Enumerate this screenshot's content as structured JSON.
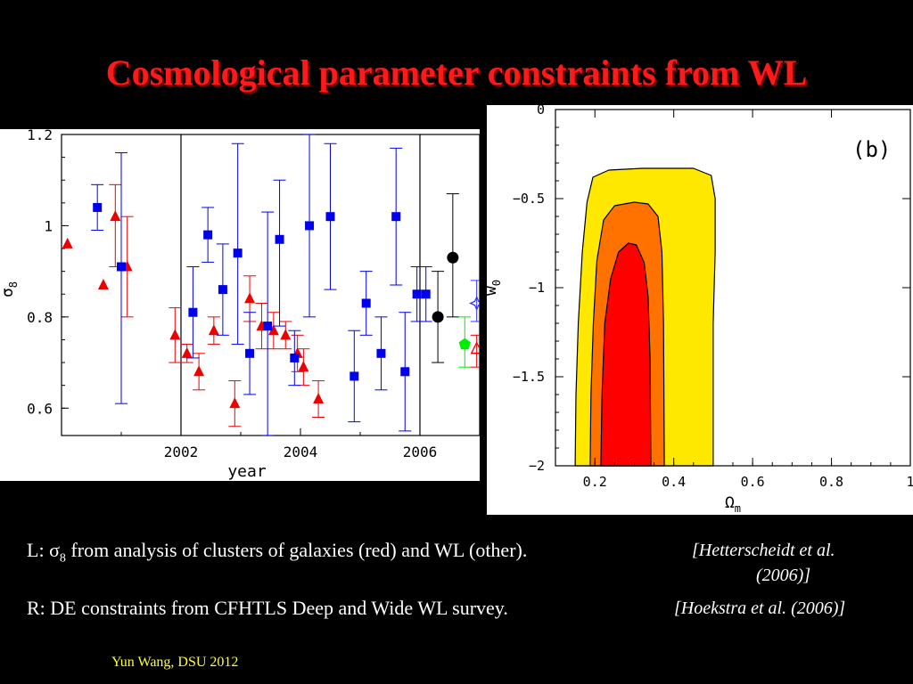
{
  "slide": {
    "title": "Cosmological parameter constraints from WL",
    "caption_left_prefix": "L: ",
    "caption_left_sigma": "σ",
    "caption_left_sub": "8",
    "caption_left_text": " from analysis of clusters of galaxies (red) and WL (other).",
    "caption_left_cite_1": "[Hetterscheidt et al.",
    "caption_left_cite_2": "(2006)]",
    "caption_right_text": "R: DE constraints from CFHTLS Deep and Wide WL survey.",
    "caption_right_cite": "[Hoekstra et al. (2006)]",
    "footer": "Yun Wang, DSU 2012"
  },
  "chart_data": [
    {
      "type": "scatter",
      "xlabel": "year",
      "ylabel": "σ",
      "ylabel_sub": "8",
      "xlim": [
        2000.0,
        2007.0
      ],
      "ylim": [
        0.54,
        1.2
      ],
      "x_ticks": [
        "2002",
        "2004",
        "2006"
      ],
      "x_tick_values": [
        2002,
        2004,
        2006
      ],
      "y_ticks": [
        "0.6",
        "0.8",
        "1",
        "1.2"
      ],
      "y_tick_values": [
        0.6,
        0.8,
        1.0,
        1.2
      ],
      "vertical_lines": [
        2002,
        2006
      ],
      "series": [
        {
          "color": "#ee0000",
          "marker": "triangle",
          "points": [
            {
              "x": 2000.1,
              "y": 0.96,
              "lo": 0.96,
              "hi": 0.96
            },
            {
              "x": 2000.7,
              "y": 0.87,
              "lo": 0.87,
              "hi": 0.87
            },
            {
              "x": 2000.9,
              "y": 1.02,
              "lo": 0.91,
              "hi": 1.09
            },
            {
              "x": 2001.1,
              "y": 0.91,
              "lo": 0.8,
              "hi": 1.02
            },
            {
              "x": 2001.9,
              "y": 0.76,
              "lo": 0.7,
              "hi": 0.82
            },
            {
              "x": 2002.1,
              "y": 0.72,
              "lo": 0.7,
              "hi": 0.74
            },
            {
              "x": 2002.3,
              "y": 0.68,
              "lo": 0.64,
              "hi": 0.72
            },
            {
              "x": 2002.55,
              "y": 0.77,
              "lo": 0.74,
              "hi": 0.8
            },
            {
              "x": 2002.9,
              "y": 0.61,
              "lo": 0.56,
              "hi": 0.66
            },
            {
              "x": 2003.15,
              "y": 0.84,
              "lo": 0.79,
              "hi": 0.89
            },
            {
              "x": 2003.35,
              "y": 0.78,
              "lo": 0.73,
              "hi": 0.83
            },
            {
              "x": 2003.55,
              "y": 0.77,
              "lo": 0.73,
              "hi": 0.81
            },
            {
              "x": 2003.75,
              "y": 0.76,
              "lo": 0.73,
              "hi": 0.79
            },
            {
              "x": 2003.95,
              "y": 0.72,
              "lo": 0.68,
              "hi": 0.76
            },
            {
              "x": 2004.05,
              "y": 0.69,
              "lo": 0.65,
              "hi": 0.73
            },
            {
              "x": 2004.3,
              "y": 0.62,
              "lo": 0.58,
              "hi": 0.66
            }
          ]
        },
        {
          "color": "#0000ee",
          "marker": "square",
          "points": [
            {
              "x": 2000.6,
              "y": 1.04,
              "lo": 0.99,
              "hi": 1.09
            },
            {
              "x": 2001.0,
              "y": 0.91,
              "lo": 0.61,
              "hi": 1.16
            },
            {
              "x": 2002.2,
              "y": 0.81,
              "lo": 0.71,
              "hi": 0.91
            },
            {
              "x": 2002.45,
              "y": 0.98,
              "lo": 0.92,
              "hi": 1.04
            },
            {
              "x": 2002.7,
              "y": 0.86,
              "lo": 0.76,
              "hi": 0.96
            },
            {
              "x": 2002.95,
              "y": 0.94,
              "lo": 0.74,
              "hi": 1.18
            },
            {
              "x": 2003.15,
              "y": 0.72,
              "lo": 0.63,
              "hi": 0.81
            },
            {
              "x": 2003.45,
              "y": 0.78,
              "lo": 0.54,
              "hi": 1.03
            },
            {
              "x": 2003.65,
              "y": 0.97,
              "lo": 0.78,
              "hi": 1.1
            },
            {
              "x": 2003.9,
              "y": 0.71,
              "lo": 0.65,
              "hi": 0.77
            },
            {
              "x": 2004.15,
              "y": 1.0,
              "lo": 0.8,
              "hi": 1.2
            },
            {
              "x": 2004.5,
              "y": 1.02,
              "lo": 0.86,
              "hi": 1.18
            },
            {
              "x": 2004.9,
              "y": 0.67,
              "lo": 0.57,
              "hi": 0.77
            },
            {
              "x": 2005.1,
              "y": 0.83,
              "lo": 0.76,
              "hi": 0.9
            },
            {
              "x": 2005.35,
              "y": 0.72,
              "lo": 0.64,
              "hi": 0.8
            },
            {
              "x": 2005.6,
              "y": 1.02,
              "lo": 0.87,
              "hi": 1.17
            },
            {
              "x": 2005.75,
              "y": 0.68,
              "lo": 0.55,
              "hi": 0.81
            },
            {
              "x": 2005.95,
              "y": 0.85,
              "lo": 0.79,
              "hi": 0.91
            },
            {
              "x": 2006.1,
              "y": 0.85,
              "lo": 0.79,
              "hi": 0.91
            }
          ]
        },
        {
          "color": "#000000",
          "marker": "circle",
          "points": [
            {
              "x": 2006.3,
              "y": 0.8,
              "lo": 0.7,
              "hi": 0.9
            },
            {
              "x": 2006.55,
              "y": 0.93,
              "lo": 0.8,
              "hi": 1.07
            }
          ]
        },
        {
          "color": "#00ee00",
          "marker": "pentagon",
          "points": [
            {
              "x": 2006.75,
              "y": 0.74,
              "lo": 0.69,
              "hi": 0.8
            }
          ]
        },
        {
          "color": "#3333ff",
          "marker": "star-open",
          "points": [
            {
              "x": 2006.95,
              "y": 0.83,
              "lo": 0.79,
              "hi": 0.88
            }
          ]
        },
        {
          "color": "#ee0000",
          "marker": "triangle-open",
          "points": [
            {
              "x": 2006.95,
              "y": 0.73,
              "lo": 0.69,
              "hi": 0.76
            }
          ]
        }
      ]
    },
    {
      "type": "area",
      "xlabel": "Ω",
      "xlabel_sub": "m",
      "ylabel": "w",
      "ylabel_sub": "0",
      "annotation": "(b)",
      "xlim": [
        0.1,
        1.0
      ],
      "ylim": [
        -2.0,
        0.0
      ],
      "x_ticks": [
        "0.2",
        "0.4",
        "0.6",
        "0.8",
        "1"
      ],
      "x_tick_values": [
        0.2,
        0.4,
        0.6,
        0.8,
        1.0
      ],
      "y_ticks": [
        "0",
        "−0.5",
        "−1",
        "−1.5",
        "−2"
      ],
      "y_tick_values": [
        0,
        -0.5,
        -1,
        -1.5,
        -2
      ],
      "contours": [
        {
          "color": "#ffe800",
          "points": [
            [
              0.15,
              -2.0
            ],
            [
              0.152,
              -1.6
            ],
            [
              0.158,
              -1.2
            ],
            [
              0.168,
              -0.8
            ],
            [
              0.18,
              -0.52
            ],
            [
              0.195,
              -0.38
            ],
            [
              0.235,
              -0.34
            ],
            [
              0.32,
              -0.33
            ],
            [
              0.45,
              -0.33
            ],
            [
              0.495,
              -0.37
            ],
            [
              0.505,
              -0.5
            ],
            [
              0.505,
              -0.8
            ],
            [
              0.5,
              -1.2
            ],
            [
              0.5,
              -2.0
            ]
          ]
        },
        {
          "color": "#ff7200",
          "points": [
            [
              0.188,
              -2.0
            ],
            [
              0.19,
              -1.6
            ],
            [
              0.196,
              -1.2
            ],
            [
              0.205,
              -0.85
            ],
            [
              0.222,
              -0.62
            ],
            [
              0.25,
              -0.54
            ],
            [
              0.3,
              -0.52
            ],
            [
              0.335,
              -0.53
            ],
            [
              0.36,
              -0.6
            ],
            [
              0.37,
              -0.8
            ],
            [
              0.374,
              -1.2
            ],
            [
              0.376,
              -2.0
            ]
          ]
        },
        {
          "color": "#ff0000",
          "points": [
            [
              0.215,
              -2.0
            ],
            [
              0.218,
              -1.6
            ],
            [
              0.225,
              -1.2
            ],
            [
              0.24,
              -0.95
            ],
            [
              0.26,
              -0.8
            ],
            [
              0.285,
              -0.75
            ],
            [
              0.305,
              -0.76
            ],
            [
              0.325,
              -0.86
            ],
            [
              0.335,
              -1.05
            ],
            [
              0.34,
              -1.4
            ],
            [
              0.342,
              -2.0
            ]
          ]
        }
      ]
    }
  ]
}
